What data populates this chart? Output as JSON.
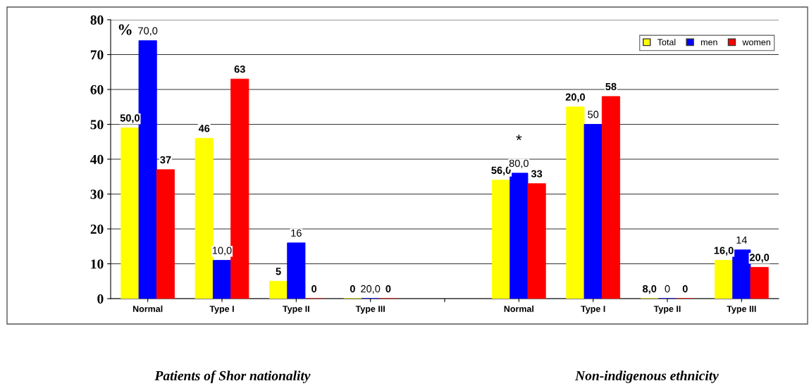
{
  "chart_data": {
    "type": "bar",
    "ylabel": "%",
    "categories": [
      "Normal",
      "Type I",
      "Type II",
      "Type III",
      null,
      "Normal",
      "Type I",
      "Type II",
      "Type III"
    ],
    "series": [
      {
        "name": "Total",
        "color": "#ffff00",
        "values": [
          49,
          46,
          5,
          0,
          null,
          34,
          55,
          0,
          11
        ],
        "value_labels": [
          null,
          "46",
          "5",
          "0",
          null,
          null,
          null,
          null,
          null
        ]
      },
      {
        "name": "men",
        "color": "#0000ff",
        "values": [
          74,
          11,
          16,
          0,
          null,
          36,
          50,
          0,
          14
        ],
        "value_labels": [
          null,
          null,
          "16",
          null,
          null,
          null,
          "50",
          "0",
          "14"
        ]
      },
      {
        "name": "women",
        "color": "#ff0000",
        "values": [
          37,
          63,
          0,
          0,
          null,
          33,
          58,
          0,
          9
        ],
        "value_labels": [
          "37",
          "63",
          "0",
          "0",
          null,
          "33",
          "58",
          "0",
          null
        ]
      }
    ],
    "ylim": [
      0,
      80
    ],
    "yticks": [
      0,
      10,
      20,
      30,
      40,
      50,
      60,
      70,
      80
    ],
    "grid": "y",
    "legend": "top right",
    "annotations": [
      "*",
      "Patients of Shor nationality",
      "Non-indigenous ethnicity",
      "50,0",
      "56,0",
      "20,0",
      "8,0",
      "16,0",
      "70,0",
      "10,0",
      "20,0",
      "80,0",
      "20,0"
    ]
  }
}
